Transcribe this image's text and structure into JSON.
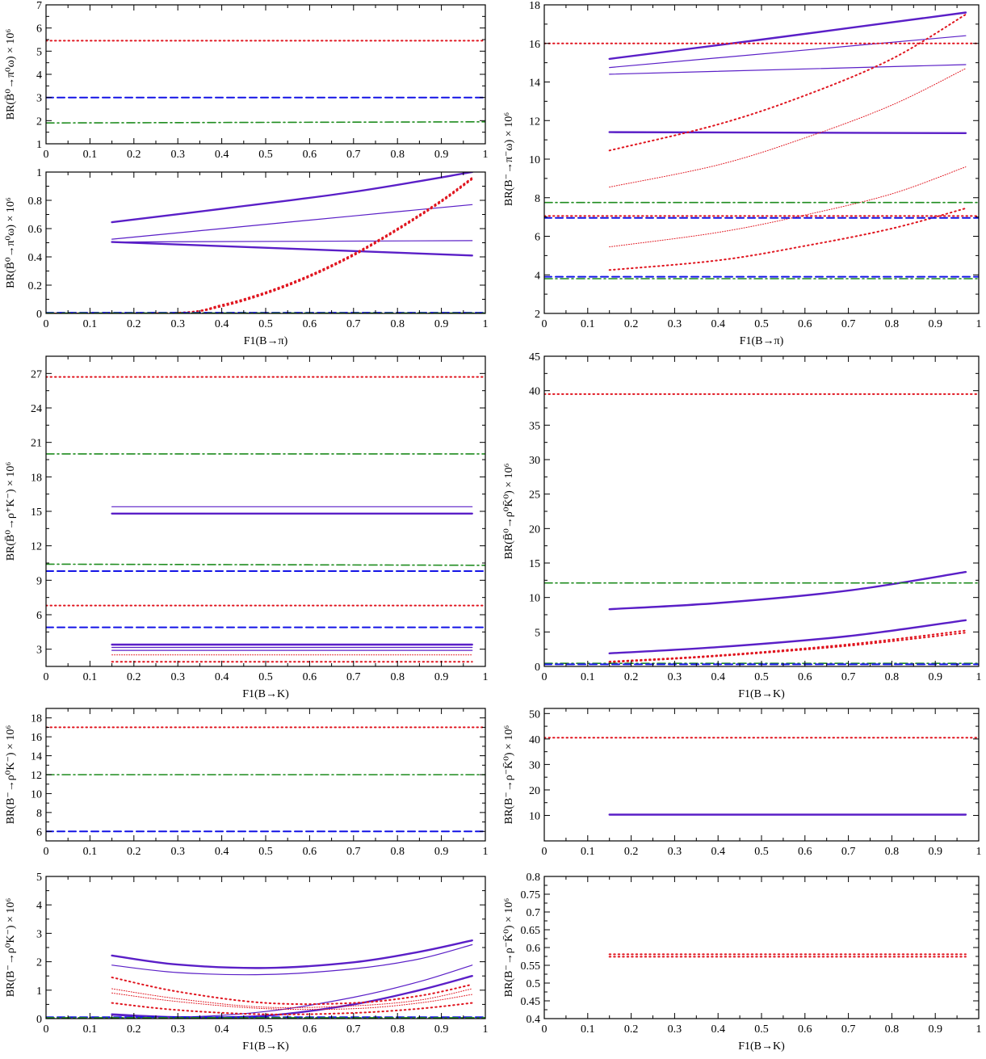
{
  "colors": {
    "purple": "#5a1fc7",
    "red": "#e0141e",
    "blue": "#1414e6",
    "green": "#1f8c1f",
    "axis": "#000000"
  },
  "chart_data": [
    {
      "id": "p1",
      "type": "line",
      "ylabel": "BR(B̄⁰→π⁰ω) × 10⁶",
      "ylabel_parts": [
        "BR(",
        "B̄",
        "0",
        "→π",
        "0",
        "ω) × 10",
        "6"
      ],
      "xlabel": "",
      "xlim": [
        0,
        1
      ],
      "ylim": [
        1,
        7
      ],
      "xticks": [
        "0",
        "0.1",
        "0.2",
        "0.3",
        "0.4",
        "0.5",
        "0.6",
        "0.7",
        "0.8",
        "0.9",
        "1"
      ],
      "yticks": [
        "1",
        "2",
        "3",
        "4",
        "5",
        "6",
        "7"
      ],
      "series": [
        {
          "style": "red-dot",
          "x": [
            0,
            1
          ],
          "y": [
            5.45,
            5.45
          ]
        },
        {
          "style": "blue-dash",
          "x": [
            0,
            1
          ],
          "y": [
            3.0,
            3.0
          ]
        },
        {
          "style": "green-dashdot",
          "x": [
            0,
            1
          ],
          "y": [
            1.9,
            1.95
          ]
        }
      ]
    },
    {
      "id": "p2",
      "type": "line",
      "ylabel": "BR(B̄⁰→π⁰ω) × 10⁶",
      "xlabel": "F1(B→π)",
      "xlim": [
        0,
        1
      ],
      "ylim": [
        0,
        1
      ],
      "xticks": [
        "0",
        "0.1",
        "0.2",
        "0.3",
        "0.4",
        "0.5",
        "0.6",
        "0.7",
        "0.8",
        "0.9",
        "1"
      ],
      "yticks": [
        "0",
        "0.2",
        "0.4",
        "0.6",
        "0.8",
        "1"
      ],
      "series": [
        {
          "style": "purple-thick",
          "x": [
            0.15,
            0.4,
            0.7,
            0.97
          ],
          "y": [
            0.645,
            0.74,
            0.86,
            1.0
          ]
        },
        {
          "style": "purple-thin",
          "x": [
            0.15,
            0.4,
            0.7,
            0.97
          ],
          "y": [
            0.525,
            0.6,
            0.69,
            0.77
          ]
        },
        {
          "style": "purple-thin",
          "x": [
            0.15,
            0.97
          ],
          "y": [
            0.505,
            0.515
          ]
        },
        {
          "style": "purple-thick",
          "x": [
            0.15,
            0.97
          ],
          "y": [
            0.505,
            0.41
          ]
        },
        {
          "style": "red-dot",
          "x": [
            0.0,
            0.3,
            0.4,
            0.5,
            0.6,
            0.7,
            0.8,
            0.9,
            0.97
          ],
          "y": [
            0,
            0.005,
            0.06,
            0.15,
            0.27,
            0.42,
            0.6,
            0.8,
            0.96
          ]
        },
        {
          "style": "red-dot",
          "x": [
            0.0,
            0.3,
            0.4,
            0.5,
            0.6,
            0.7,
            0.8,
            0.9,
            0.97
          ],
          "y": [
            0,
            0.005,
            0.05,
            0.14,
            0.26,
            0.41,
            0.59,
            0.79,
            0.95
          ]
        },
        {
          "style": "blue-dash",
          "x": [
            0,
            1
          ],
          "y": [
            0.005,
            0.005
          ]
        },
        {
          "style": "green-dashdot",
          "x": [
            0,
            1
          ],
          "y": [
            0.003,
            0.003
          ]
        }
      ]
    },
    {
      "id": "p3",
      "type": "line",
      "ylabel": "BR(B⁻→π⁻ω) × 10⁶",
      "xlabel": "F1(B→π)",
      "xlim": [
        0,
        1
      ],
      "ylim": [
        2,
        18
      ],
      "xticks": [
        "0",
        "0.1",
        "0.2",
        "0.3",
        "0.4",
        "0.5",
        "0.6",
        "0.7",
        "0.8",
        "0.9",
        "1"
      ],
      "yticks": [
        "2",
        "4",
        "6",
        "8",
        "10",
        "12",
        "14",
        "16",
        "18"
      ],
      "series": [
        {
          "style": "purple-thick",
          "x": [
            0.15,
            0.5,
            0.97
          ],
          "y": [
            15.2,
            16.2,
            17.6
          ]
        },
        {
          "style": "purple-thin",
          "x": [
            0.15,
            0.97
          ],
          "y": [
            14.75,
            16.4
          ]
        },
        {
          "style": "purple-thin",
          "x": [
            0.15,
            0.97
          ],
          "y": [
            14.4,
            14.9
          ]
        },
        {
          "style": "purple-thick",
          "x": [
            0.15,
            0.97
          ],
          "y": [
            11.4,
            11.35
          ]
        },
        {
          "style": "red-dot",
          "x": [
            0,
            1
          ],
          "y": [
            16.0,
            16.0
          ]
        },
        {
          "style": "red-dot",
          "x": [
            0.15,
            0.4,
            0.6,
            0.8,
            0.97
          ],
          "y": [
            10.45,
            11.8,
            13.3,
            15.2,
            17.5
          ]
        },
        {
          "style": "red-dot-thin",
          "x": [
            0.15,
            0.4,
            0.6,
            0.8,
            0.97
          ],
          "y": [
            8.55,
            9.7,
            11.1,
            12.8,
            14.7
          ]
        },
        {
          "style": "red-dot-thin",
          "x": [
            0.15,
            0.4,
            0.6,
            0.8,
            0.97
          ],
          "y": [
            5.45,
            6.2,
            7.1,
            8.2,
            9.6
          ]
        },
        {
          "style": "red-dot",
          "x": [
            0.15,
            0.4,
            0.6,
            0.8,
            0.97
          ],
          "y": [
            4.25,
            4.75,
            5.5,
            6.4,
            7.45
          ]
        },
        {
          "style": "red-dot",
          "x": [
            0,
            1
          ],
          "y": [
            7.05,
            7.05
          ]
        },
        {
          "style": "green-dashdot",
          "x": [
            0,
            1
          ],
          "y": [
            7.75,
            7.75
          ]
        },
        {
          "style": "blue-dash",
          "x": [
            0,
            1
          ],
          "y": [
            6.95,
            6.95
          ]
        },
        {
          "style": "blue-dash",
          "x": [
            0,
            1
          ],
          "y": [
            3.9,
            3.9
          ]
        },
        {
          "style": "green-dashdot",
          "x": [
            0,
            1
          ],
          "y": [
            3.8,
            3.8
          ]
        }
      ]
    },
    {
      "id": "p4",
      "type": "line",
      "ylabel": "BR(B̄⁰→ρ⁺K⁻) × 10⁶",
      "xlabel": "F1(B→K)",
      "xlim": [
        0,
        1
      ],
      "ylim": [
        1.5,
        28.5
      ],
      "xticks": [
        "0",
        "0.1",
        "0.2",
        "0.3",
        "0.4",
        "0.5",
        "0.6",
        "0.7",
        "0.8",
        "0.9",
        "1"
      ],
      "yticks": [
        "3",
        "6",
        "9",
        "12",
        "15",
        "18",
        "21",
        "24",
        "27"
      ],
      "series": [
        {
          "style": "red-dot",
          "x": [
            0,
            1
          ],
          "y": [
            26.7,
            26.7
          ]
        },
        {
          "style": "green-dashdot",
          "x": [
            0,
            1
          ],
          "y": [
            20.0,
            20.0
          ]
        },
        {
          "style": "purple-thin",
          "x": [
            0.15,
            0.97
          ],
          "y": [
            15.4,
            15.4
          ]
        },
        {
          "style": "purple-thick",
          "x": [
            0.15,
            0.97
          ],
          "y": [
            14.8,
            14.8
          ]
        },
        {
          "style": "green-dashdot",
          "x": [
            0,
            1
          ],
          "y": [
            10.4,
            10.3
          ]
        },
        {
          "style": "blue-dash",
          "x": [
            0,
            1
          ],
          "y": [
            9.8,
            9.8
          ]
        },
        {
          "style": "red-dot",
          "x": [
            0,
            1
          ],
          "y": [
            6.8,
            6.8
          ]
        },
        {
          "style": "blue-dash",
          "x": [
            0,
            1
          ],
          "y": [
            4.9,
            4.9
          ]
        },
        {
          "style": "purple-thick",
          "x": [
            0.15,
            0.97
          ],
          "y": [
            3.4,
            3.4
          ]
        },
        {
          "style": "purple-thin",
          "x": [
            0.15,
            0.97
          ],
          "y": [
            3.15,
            3.15
          ]
        },
        {
          "style": "purple-thin",
          "x": [
            0.15,
            0.97
          ],
          "y": [
            2.9,
            2.9
          ]
        },
        {
          "style": "red-dot-thin",
          "x": [
            0.15,
            0.97
          ],
          "y": [
            2.5,
            2.5
          ]
        },
        {
          "style": "red-dot",
          "x": [
            0.15,
            0.97
          ],
          "y": [
            1.9,
            1.9
          ]
        }
      ]
    },
    {
      "id": "p5",
      "type": "line",
      "ylabel": "BR(B̄⁰→ρ⁰K̄⁰) × 10⁶",
      "xlabel": "F1(B→K)",
      "xlim": [
        0,
        1
      ],
      "ylim": [
        0,
        45
      ],
      "xticks": [
        "0",
        "0.1",
        "0.2",
        "0.3",
        "0.4",
        "0.5",
        "0.6",
        "0.7",
        "0.8",
        "0.9",
        "1"
      ],
      "yticks": [
        "0",
        "5",
        "10",
        "15",
        "20",
        "25",
        "30",
        "35",
        "40",
        "45"
      ],
      "series": [
        {
          "style": "red-dot",
          "x": [
            0,
            1
          ],
          "y": [
            39.5,
            39.5
          ]
        },
        {
          "style": "purple-thick",
          "x": [
            0.15,
            0.4,
            0.7,
            0.97
          ],
          "y": [
            8.3,
            9.2,
            11.0,
            13.7
          ]
        },
        {
          "style": "green-dashdot",
          "x": [
            0,
            1
          ],
          "y": [
            12.1,
            12.1
          ]
        },
        {
          "style": "purple-thick",
          "x": [
            0.15,
            0.4,
            0.7,
            0.97
          ],
          "y": [
            1.9,
            2.8,
            4.4,
            6.7
          ]
        },
        {
          "style": "red-dot",
          "x": [
            0.15,
            0.4,
            0.7,
            0.97
          ],
          "y": [
            0.7,
            1.6,
            3.2,
            5.2
          ]
        },
        {
          "style": "red-dot",
          "x": [
            0.15,
            0.4,
            0.7,
            0.97
          ],
          "y": [
            0.6,
            1.5,
            3.0,
            4.9
          ]
        },
        {
          "style": "green-dashdot",
          "x": [
            0,
            1
          ],
          "y": [
            0.45,
            0.45
          ]
        },
        {
          "style": "blue-dash",
          "x": [
            0,
            1
          ],
          "y": [
            0.3,
            0.3
          ]
        }
      ]
    },
    {
      "id": "p6",
      "type": "line",
      "ylabel": "BR(B⁻→ρ⁰K⁻) × 10⁶",
      "xlabel": "",
      "xlim": [
        0,
        1
      ],
      "ylim": [
        5,
        19
      ],
      "xticks": [
        "0",
        "0.1",
        "0.2",
        "0.3",
        "0.4",
        "0.5",
        "0.6",
        "0.7",
        "0.8",
        "0.9",
        "1"
      ],
      "yticks": [
        "6",
        "8",
        "10",
        "12",
        "14",
        "16",
        "18"
      ],
      "series": [
        {
          "style": "red-dot",
          "x": [
            0,
            1
          ],
          "y": [
            17.0,
            17.0
          ]
        },
        {
          "style": "green-dashdot",
          "x": [
            0,
            1
          ],
          "y": [
            12.0,
            12.0
          ]
        },
        {
          "style": "blue-dash",
          "x": [
            0,
            1
          ],
          "y": [
            6.0,
            6.0
          ]
        }
      ]
    },
    {
      "id": "p7",
      "type": "line",
      "ylabel": "BR(B⁻→ρ⁻K̄⁰) × 10⁶",
      "xlabel": "",
      "xlim": [
        0,
        1
      ],
      "ylim": [
        0,
        52
      ],
      "xticks": [
        "0",
        "0.1",
        "0.2",
        "0.3",
        "0.4",
        "0.5",
        "0.6",
        "0.7",
        "0.8",
        "0.9",
        "1"
      ],
      "yticks": [
        "10",
        "20",
        "30",
        "40",
        "50"
      ],
      "series": [
        {
          "style": "red-dot",
          "x": [
            0,
            1
          ],
          "y": [
            40.5,
            40.5
          ]
        },
        {
          "style": "purple-thick",
          "x": [
            0.15,
            0.97
          ],
          "y": [
            10.3,
            10.3
          ]
        }
      ]
    },
    {
      "id": "p8",
      "type": "line",
      "ylabel": "BR(B⁻→ρ⁰K⁻) × 10⁶",
      "xlabel": "F1(B→K)",
      "xlim": [
        0,
        1
      ],
      "ylim": [
        0,
        5
      ],
      "xticks": [
        "0",
        "0.1",
        "0.2",
        "0.3",
        "0.4",
        "0.5",
        "0.6",
        "0.7",
        "0.8",
        "0.9",
        "1"
      ],
      "yticks": [
        "0",
        "1",
        "2",
        "3",
        "4",
        "5"
      ],
      "series": [
        {
          "style": "purple-thick",
          "x": [
            0.15,
            0.3,
            0.5,
            0.7,
            0.85,
            0.97
          ],
          "y": [
            2.22,
            1.9,
            1.78,
            1.98,
            2.35,
            2.75
          ]
        },
        {
          "style": "purple-thin",
          "x": [
            0.15,
            0.3,
            0.5,
            0.7,
            0.85,
            0.97
          ],
          "y": [
            1.88,
            1.62,
            1.55,
            1.75,
            2.1,
            2.6
          ]
        },
        {
          "style": "purple-thin",
          "x": [
            0.15,
            0.3,
            0.5,
            0.7,
            0.85,
            0.97
          ],
          "y": [
            0.12,
            0.05,
            0.25,
            0.75,
            1.3,
            1.88
          ]
        },
        {
          "style": "purple-thick",
          "x": [
            0.15,
            0.3,
            0.5,
            0.7,
            0.85,
            0.97
          ],
          "y": [
            0.15,
            0.05,
            0.1,
            0.5,
            1.0,
            1.5
          ]
        },
        {
          "style": "red-dot",
          "x": [
            0.15,
            0.3,
            0.5,
            0.7,
            0.85,
            0.97
          ],
          "y": [
            1.45,
            0.95,
            0.55,
            0.55,
            0.8,
            1.2
          ]
        },
        {
          "style": "red-dot-thin",
          "x": [
            0.15,
            0.3,
            0.5,
            0.7,
            0.85,
            0.97
          ],
          "y": [
            1.05,
            0.7,
            0.4,
            0.45,
            0.65,
            1.05
          ]
        },
        {
          "style": "red-dot-thin",
          "x": [
            0.15,
            0.3,
            0.5,
            0.7,
            0.85,
            0.97
          ],
          "y": [
            0.9,
            0.6,
            0.35,
            0.35,
            0.55,
            0.85
          ]
        },
        {
          "style": "red-dot",
          "x": [
            0.15,
            0.3,
            0.5,
            0.7,
            0.85,
            0.97
          ],
          "y": [
            0.55,
            0.3,
            0.15,
            0.2,
            0.35,
            0.55
          ]
        },
        {
          "style": "blue-dash",
          "x": [
            0,
            1
          ],
          "y": [
            0.05,
            0.05
          ]
        },
        {
          "style": "green-dashdot",
          "x": [
            0,
            1
          ],
          "y": [
            0.03,
            0.03
          ]
        }
      ]
    },
    {
      "id": "p9",
      "type": "line",
      "ylabel": "BR(B⁻→ρ⁻K̄⁰) × 10⁶",
      "xlabel": "F1(B→K)",
      "xlim": [
        0,
        1
      ],
      "ylim": [
        0.4,
        0.8
      ],
      "xticks": [
        "0",
        "0.1",
        "0.2",
        "0.3",
        "0.4",
        "0.5",
        "0.6",
        "0.7",
        "0.8",
        "0.9",
        "1"
      ],
      "yticks": [
        "0.4",
        "0.45",
        "0.5",
        "0.55",
        "0.6",
        "0.65",
        "0.7",
        "0.75",
        "0.8"
      ],
      "series": [
        {
          "style": "red-dot",
          "x": [
            0.15,
            0.97
          ],
          "y": [
            0.581,
            0.581
          ]
        },
        {
          "style": "red-dot",
          "x": [
            0.15,
            0.97
          ],
          "y": [
            0.574,
            0.574
          ]
        }
      ]
    }
  ],
  "panels_layout_note": "three rows of left/right stacks"
}
